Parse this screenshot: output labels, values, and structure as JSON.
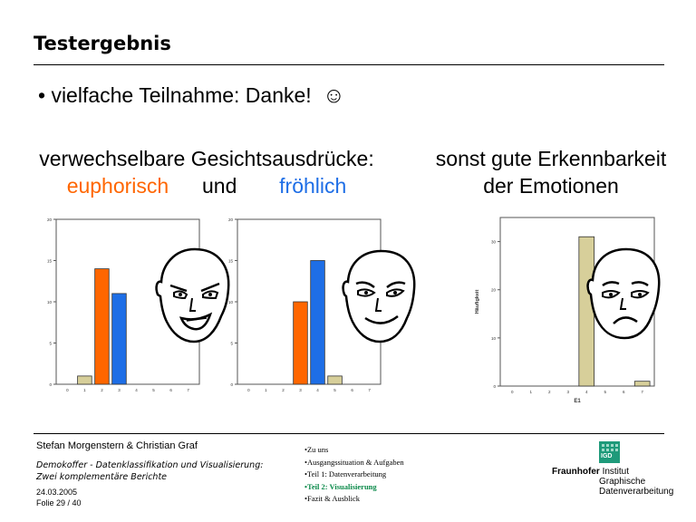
{
  "slide": {
    "title": "Testergebnis",
    "bullet_text": "• vielfache Teilnahme: Danke!",
    "bullet_smiley": "☺"
  },
  "left_heading": {
    "line1": "verwechselbare Gesichtsausdrücke:",
    "word_euphoric": "euphorisch",
    "word_and": "und",
    "word_happy": "fröhlich"
  },
  "right_heading": {
    "line1": "sonst gute Erkennbarkeit",
    "line2": "der Emotionen"
  },
  "colors": {
    "euphoric": "#ff6600",
    "happy": "#1e6ee6",
    "neutral": "#d7cf9a"
  },
  "chart_data": [
    {
      "type": "bar",
      "categories": [
        "0",
        "1",
        "2",
        "3",
        "4",
        "5",
        "6",
        "7"
      ],
      "values": [
        0,
        1,
        14,
        11,
        0,
        0,
        0,
        0
      ],
      "bar_colors": [
        "#d7cf9a",
        "#d7cf9a",
        "#ff6600",
        "#1e6ee6",
        "#d7cf9a",
        "#d7cf9a",
        "#d7cf9a",
        "#d7cf9a"
      ],
      "yticks": [
        "0",
        "5",
        "10",
        "15",
        "20"
      ],
      "ylim": [
        0,
        20
      ]
    },
    {
      "type": "bar",
      "categories": [
        "0",
        "1",
        "2",
        "3",
        "4",
        "5",
        "6",
        "7"
      ],
      "values": [
        0,
        0,
        0,
        10,
        15,
        1,
        0,
        0
      ],
      "bar_colors": [
        "#d7cf9a",
        "#d7cf9a",
        "#d7cf9a",
        "#ff6600",
        "#1e6ee6",
        "#d7cf9a",
        "#d7cf9a",
        "#d7cf9a"
      ],
      "yticks": [
        "0",
        "5",
        "10",
        "15",
        "20"
      ],
      "ylim": [
        0,
        20
      ]
    },
    {
      "type": "bar",
      "categories": [
        "0",
        "1",
        "2",
        "3",
        "4",
        "5",
        "6",
        "7"
      ],
      "values": [
        0,
        0,
        0,
        0,
        31,
        0,
        0,
        1
      ],
      "bar_colors": [
        "#d7cf9a",
        "#d7cf9a",
        "#d7cf9a",
        "#d7cf9a",
        "#d7cf9a",
        "#d7cf9a",
        "#d7cf9a",
        "#d7cf9a"
      ],
      "yticks": [
        "0",
        "10",
        "20",
        "30"
      ],
      "ylim": [
        0,
        35
      ],
      "ylabel": "Häufigkeit",
      "xlabel": "E1"
    }
  ],
  "footer": {
    "authors": "Stefan Morgenstern & Christian Graf",
    "subtitle_line1": "Demokoffer - Datenklassifikation und Visualisierung:",
    "subtitle_line2": "Zwei komplementäre Berichte",
    "date": "24.03.2005",
    "slide_number": "Folie 29 / 40"
  },
  "agenda": [
    {
      "label": "•Zu uns",
      "active": false
    },
    {
      "label": "•Ausgangssituation & Aufgaben",
      "active": false
    },
    {
      "label": "•Teil 1: Datenverarbeitung",
      "active": false
    },
    {
      "label": "•Teil 2: Visualisierung",
      "active": true
    },
    {
      "label": "•Fazit & Ausblick",
      "active": false
    }
  ],
  "logo": {
    "badge": "IGD",
    "company": "Fraunhofer",
    "line1": "Institut",
    "line2": "Graphische",
    "line3": "Datenverarbeitung"
  }
}
